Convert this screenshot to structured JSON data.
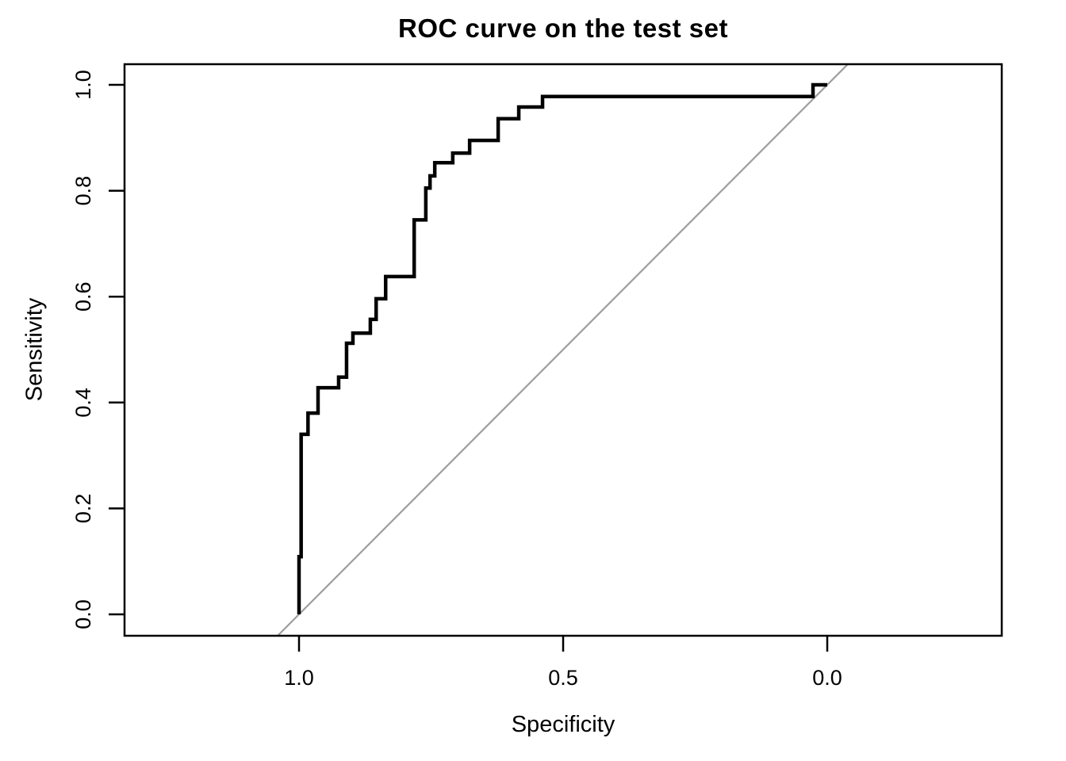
{
  "chart_data": {
    "type": "line",
    "subtype": "roc-step-curve",
    "title": "ROC curve on the test set",
    "xlabel": "Specificity",
    "ylabel": "Sensitivity",
    "x_axis": {
      "ticks": [
        "1.0",
        "0.5",
        "0.0"
      ],
      "reversed": true,
      "range": [
        1.0,
        0.0
      ]
    },
    "y_axis": {
      "ticks": [
        "0.0",
        "0.2",
        "0.4",
        "0.6",
        "0.8",
        "1.0"
      ],
      "range": [
        0.0,
        1.0
      ]
    },
    "grid": false,
    "legend": "none",
    "frame_color": "#000000",
    "series": [
      {
        "name": "ROC curve (test set)",
        "style": "step",
        "color": "#000000",
        "line_width": 4.5,
        "points_spec_sens": [
          [
            1.0,
            0.0
          ],
          [
            1.0,
            0.109
          ],
          [
            0.996,
            0.109
          ],
          [
            0.996,
            0.34
          ],
          [
            0.983,
            0.34
          ],
          [
            0.983,
            0.38
          ],
          [
            0.964,
            0.38
          ],
          [
            0.964,
            0.428
          ],
          [
            0.925,
            0.428
          ],
          [
            0.925,
            0.448
          ],
          [
            0.91,
            0.448
          ],
          [
            0.91,
            0.512
          ],
          [
            0.898,
            0.512
          ],
          [
            0.898,
            0.531
          ],
          [
            0.865,
            0.531
          ],
          [
            0.865,
            0.557
          ],
          [
            0.854,
            0.557
          ],
          [
            0.854,
            0.596
          ],
          [
            0.836,
            0.596
          ],
          [
            0.836,
            0.638
          ],
          [
            0.782,
            0.638
          ],
          [
            0.782,
            0.745
          ],
          [
            0.76,
            0.745
          ],
          [
            0.76,
            0.805
          ],
          [
            0.752,
            0.805
          ],
          [
            0.752,
            0.828
          ],
          [
            0.743,
            0.828
          ],
          [
            0.743,
            0.853
          ],
          [
            0.709,
            0.853
          ],
          [
            0.709,
            0.871
          ],
          [
            0.677,
            0.871
          ],
          [
            0.677,
            0.895
          ],
          [
            0.623,
            0.895
          ],
          [
            0.623,
            0.936
          ],
          [
            0.584,
            0.936
          ],
          [
            0.584,
            0.958
          ],
          [
            0.539,
            0.958
          ],
          [
            0.539,
            0.978
          ],
          [
            0.027,
            0.978
          ],
          [
            0.027,
            1.0
          ],
          [
            0.0,
            1.0
          ]
        ]
      },
      {
        "name": "chance diagonal",
        "style": "straight",
        "color": "#9e9e9e",
        "line_width": 2.2,
        "points_spec_sens": [
          [
            1.041,
            -0.041
          ],
          [
            -0.039,
            1.039
          ]
        ]
      }
    ]
  }
}
